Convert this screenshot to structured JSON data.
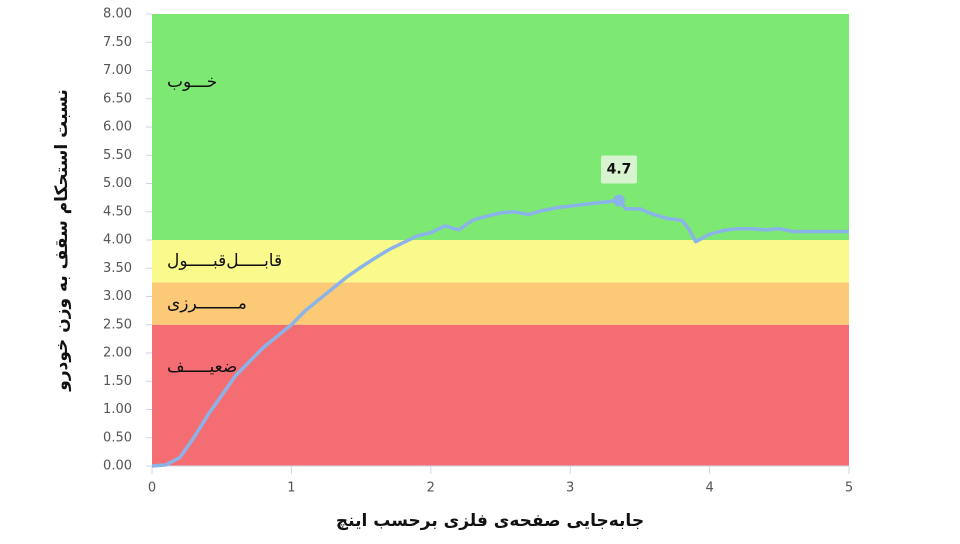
{
  "chart_data": {
    "type": "line",
    "x_label": "جابه‌جایی صفحه‌ی فلزی برحسب اینچ",
    "y_label": "نسبت استحکام سقف به وزن خودرو",
    "xlim": [
      0,
      5
    ],
    "xticks": [
      0,
      1,
      2,
      3,
      4,
      5
    ],
    "ylim": [
      0,
      8
    ],
    "yticks": [
      {
        "value": 0,
        "label": "0.00"
      },
      {
        "value": 0.5,
        "label": "0.50"
      },
      {
        "value": 1,
        "label": "1.00"
      },
      {
        "value": 1.5,
        "label": "1.50"
      },
      {
        "value": 2,
        "label": "2.00"
      },
      {
        "value": 2.5,
        "label": "2.50"
      },
      {
        "value": 3,
        "label": "3.00"
      },
      {
        "value": 3.5,
        "label": "3.50"
      },
      {
        "value": 4,
        "label": "4.00"
      },
      {
        "value": 4.5,
        "label": "4.50"
      },
      {
        "value": 5,
        "label": "5.00"
      },
      {
        "value": 5.5,
        "label": "5.50"
      },
      {
        "value": 6,
        "label": "6.00"
      },
      {
        "value": 6.5,
        "label": "6.50"
      },
      {
        "value": 7,
        "label": "7.00"
      },
      {
        "value": 7.5,
        "label": "7.50"
      },
      {
        "value": 8,
        "label": "8.00"
      }
    ],
    "bands": [
      {
        "name": "ضعیـــــف",
        "from": 0,
        "to": 2.5,
        "color": "#f46d73"
      },
      {
        "name": "مــــــــرزی",
        "from": 2.5,
        "to": 3.25,
        "color": "#fcc977"
      },
      {
        "name": "قابـــــل‌قبـــــول",
        "from": 3.25,
        "to": 4,
        "color": "#fafa8c"
      },
      {
        "name": "خـــوب",
        "from": 4,
        "to": 8,
        "color": "#7de872"
      }
    ],
    "series": [
      {
        "color": "#8ab4e8",
        "x": [
          0,
          0.1,
          0.2,
          0.3,
          0.4,
          0.5,
          0.6,
          0.7,
          0.8,
          0.9,
          1.0,
          1.1,
          1.2,
          1.3,
          1.4,
          1.5,
          1.6,
          1.7,
          1.8,
          1.9,
          2.0,
          2.1,
          2.2,
          2.3,
          2.4,
          2.5,
          2.6,
          2.7,
          2.8,
          2.9,
          3.0,
          3.1,
          3.2,
          3.35,
          3.4,
          3.5,
          3.6,
          3.7,
          3.8,
          3.85,
          3.9,
          4.0,
          4.1,
          4.2,
          4.3,
          4.4,
          4.5,
          4.6,
          4.7,
          4.8,
          4.9,
          5.0
        ],
        "values": [
          0,
          0.02,
          0.15,
          0.5,
          0.9,
          1.25,
          1.6,
          1.85,
          2.1,
          2.3,
          2.5,
          2.75,
          2.95,
          3.15,
          3.35,
          3.52,
          3.68,
          3.83,
          3.95,
          4.07,
          4.13,
          4.25,
          4.18,
          4.35,
          4.42,
          4.48,
          4.5,
          4.45,
          4.52,
          4.57,
          4.6,
          4.63,
          4.66,
          4.7,
          4.55,
          4.55,
          4.45,
          4.38,
          4.35,
          4.2,
          3.97,
          4.1,
          4.17,
          4.2,
          4.2,
          4.18,
          4.2,
          4.15,
          4.15,
          4.15,
          4.15,
          4.15
        ]
      }
    ],
    "annotation": {
      "x": 3.35,
      "value": 4.7
    }
  }
}
